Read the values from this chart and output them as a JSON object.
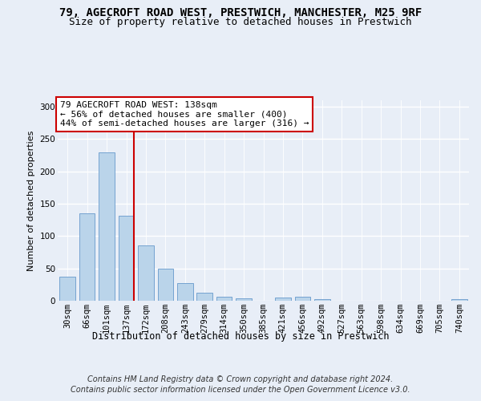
{
  "title1": "79, AGECROFT ROAD WEST, PRESTWICH, MANCHESTER, M25 9RF",
  "title2": "Size of property relative to detached houses in Prestwich",
  "xlabel": "Distribution of detached houses by size in Prestwich",
  "ylabel": "Number of detached properties",
  "categories": [
    "30sqm",
    "66sqm",
    "101sqm",
    "137sqm",
    "172sqm",
    "208sqm",
    "243sqm",
    "279sqm",
    "314sqm",
    "350sqm",
    "385sqm",
    "421sqm",
    "456sqm",
    "492sqm",
    "527sqm",
    "563sqm",
    "598sqm",
    "634sqm",
    "669sqm",
    "705sqm",
    "740sqm"
  ],
  "values": [
    37,
    135,
    229,
    132,
    86,
    50,
    27,
    12,
    6,
    4,
    0,
    5,
    6,
    3,
    0,
    0,
    0,
    0,
    0,
    0,
    3
  ],
  "bar_color": "#bad4ea",
  "bar_edge_color": "#6699cc",
  "vline_color": "#cc0000",
  "vline_index": 3,
  "annotation_text": "79 AGECROFT ROAD WEST: 138sqm\n← 56% of detached houses are smaller (400)\n44% of semi-detached houses are larger (316) →",
  "annotation_box_facecolor": "#ffffff",
  "annotation_box_edgecolor": "#cc0000",
  "ylim": [
    0,
    310
  ],
  "yticks": [
    0,
    50,
    100,
    150,
    200,
    250,
    300
  ],
  "footer1": "Contains HM Land Registry data © Crown copyright and database right 2024.",
  "footer2": "Contains public sector information licensed under the Open Government Licence v3.0.",
  "bg_color": "#e8eef7",
  "title1_fontsize": 10,
  "title2_fontsize": 9,
  "xlabel_fontsize": 8.5,
  "ylabel_fontsize": 8,
  "tick_fontsize": 7.5,
  "annotation_fontsize": 8,
  "footer_fontsize": 7
}
